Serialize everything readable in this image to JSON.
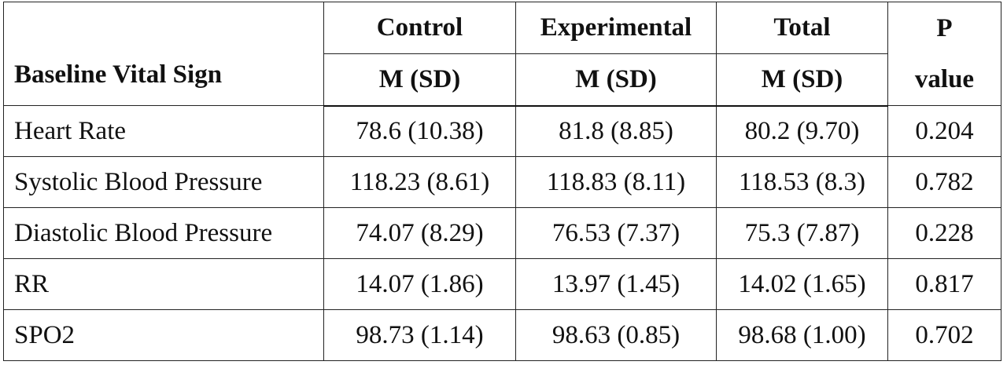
{
  "table": {
    "header_row_label": "Baseline Vital Sign",
    "groups": [
      {
        "name": "Control",
        "sub": "M (SD)"
      },
      {
        "name": "Experimental",
        "sub": "M (SD)"
      },
      {
        "name": "Total",
        "sub": "M (SD)"
      }
    ],
    "p_value_header_line1": "P",
    "p_value_header_line2": "value",
    "rows": [
      {
        "label": "Heart Rate",
        "control": "78.6 (10.38)",
        "experimental": "81.8 (8.85)",
        "total": "80.2 (9.70)",
        "p": "0.204"
      },
      {
        "label": "Systolic Blood Pressure",
        "control": "118.23 (8.61)",
        "experimental": "118.83 (8.11)",
        "total": "118.53 (8.3)",
        "p": "0.782"
      },
      {
        "label": "Diastolic Blood Pressure",
        "control": "74.07 (8.29)",
        "experimental": "76.53 (7.37)",
        "total": "75.3 (7.87)",
        "p": "0.228"
      },
      {
        "label": "RR",
        "control": "14.07 (1.86)",
        "experimental": "13.97 (1.45)",
        "total": "14.02 (1.65)",
        "p": "0.817"
      },
      {
        "label": "SPO2",
        "control": "98.73 (1.14)",
        "experimental": "98.63 (0.85)",
        "total": "98.68 (1.00)",
        "p": "0.702"
      }
    ]
  }
}
